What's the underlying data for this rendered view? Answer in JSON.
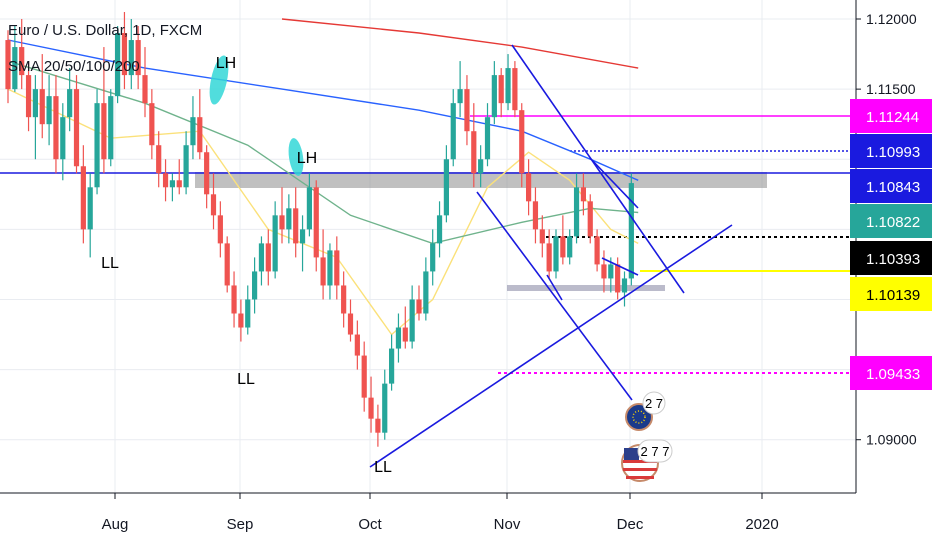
{
  "header": {
    "symbol": "Euro / U.S. Dollar, 1D, FXCM",
    "indicator": "SMA 20/50/100/200"
  },
  "colors": {
    "up": "#26a69a",
    "down": "#ef5350",
    "sma20": "#fbe17a",
    "sma50": "#6fb38c",
    "sma100": "#2962ff",
    "sma200": "#e53935",
    "trendline": "#1a1adf",
    "zone": "#8d8d8d",
    "magenta": "#ff00ff",
    "yellow": "#ffff00",
    "grid": "#e9ecf1"
  },
  "chart_data": {
    "type": "candlestick",
    "title": "Euro / U.S. Dollar, 1D, FXCM",
    "subtitle": "SMA 20/50/100/200",
    "x_ticks": [
      "Aug",
      "Sep",
      "Oct",
      "Nov",
      "Dec",
      "2020"
    ],
    "y_ticks": [
      "1.12000",
      "1.11500",
      "1.09000"
    ],
    "ylim": [
      1.0862,
      1.1205
    ],
    "grid": true,
    "price_labels": [
      {
        "value": "1.11244",
        "price": 1.11244,
        "bg": "#ff00ff",
        "fg": "#ffffff"
      },
      {
        "value": "1.10993",
        "price": 1.10993,
        "bg": "#1a1adf",
        "fg": "#ffffff"
      },
      {
        "value": "1.10843",
        "price": 1.10843,
        "bg": "#1a1adf",
        "fg": "#ffffff"
      },
      {
        "value": "1.10822",
        "price": 1.10822,
        "bg": "#26a69a",
        "fg": "#ffffff"
      },
      {
        "value": "1.10393",
        "price": 1.10393,
        "bg": "#000000",
        "fg": "#ffffff"
      },
      {
        "value": "1.10139",
        "price": 1.10139,
        "bg": "#ffff00",
        "fg": "#000000"
      },
      {
        "value": "1.09433",
        "price": 1.09433,
        "bg": "#ff00ff",
        "fg": "#ffffff"
      }
    ],
    "annotations": [
      "LH",
      "LH",
      "LL",
      "LL",
      "LL"
    ],
    "event_markers": [
      "2 7",
      "2 7 7"
    ],
    "candles": [
      [
        1.1185,
        1.1192,
        1.114,
        1.115
      ],
      [
        1.115,
        1.1195,
        1.1148,
        1.118
      ],
      [
        1.118,
        1.12,
        1.115,
        1.116
      ],
      [
        1.116,
        1.117,
        1.112,
        1.113
      ],
      [
        1.113,
        1.116,
        1.11,
        1.115
      ],
      [
        1.115,
        1.1175,
        1.1115,
        1.1125
      ],
      [
        1.1125,
        1.116,
        1.111,
        1.1145
      ],
      [
        1.1145,
        1.116,
        1.109,
        1.11
      ],
      [
        1.11,
        1.114,
        1.1085,
        1.113
      ],
      [
        1.113,
        1.1165,
        1.112,
        1.115
      ],
      [
        1.115,
        1.116,
        1.109,
        1.1095
      ],
      [
        1.1095,
        1.111,
        1.104,
        1.105
      ],
      [
        1.105,
        1.109,
        1.103,
        1.108
      ],
      [
        1.108,
        1.115,
        1.1075,
        1.114
      ],
      [
        1.114,
        1.118,
        1.109,
        1.11
      ],
      [
        1.11,
        1.115,
        1.1095,
        1.1145
      ],
      [
        1.1145,
        1.1195,
        1.114,
        1.119
      ],
      [
        1.119,
        1.1205,
        1.115,
        1.116
      ],
      [
        1.116,
        1.12,
        1.115,
        1.1185
      ],
      [
        1.1185,
        1.1195,
        1.115,
        1.116
      ],
      [
        1.116,
        1.118,
        1.113,
        1.114
      ],
      [
        1.114,
        1.115,
        1.11,
        1.111
      ],
      [
        1.111,
        1.112,
        1.108,
        1.109
      ],
      [
        1.109,
        1.11,
        1.107,
        1.108
      ],
      [
        1.108,
        1.109,
        1.107,
        1.1085
      ],
      [
        1.1085,
        1.11,
        1.1075,
        1.108
      ],
      [
        1.108,
        1.112,
        1.1075,
        1.111
      ],
      [
        1.111,
        1.1145,
        1.11,
        1.113
      ],
      [
        1.113,
        1.115,
        1.11,
        1.1105
      ],
      [
        1.1105,
        1.111,
        1.1065,
        1.1075
      ],
      [
        1.1075,
        1.109,
        1.105,
        1.106
      ],
      [
        1.106,
        1.107,
        1.103,
        1.104
      ],
      [
        1.104,
        1.1045,
        1.1005,
        1.101
      ],
      [
        1.101,
        1.102,
        1.098,
        1.099
      ],
      [
        1.099,
        1.1,
        1.097,
        1.098
      ],
      [
        1.098,
        1.101,
        1.0975,
        1.1
      ],
      [
        1.1,
        1.103,
        1.099,
        1.102
      ],
      [
        1.102,
        1.1045,
        1.101,
        1.104
      ],
      [
        1.104,
        1.105,
        1.101,
        1.102
      ],
      [
        1.102,
        1.107,
        1.1015,
        1.106
      ],
      [
        1.106,
        1.108,
        1.104,
        1.105
      ],
      [
        1.105,
        1.1075,
        1.104,
        1.1065
      ],
      [
        1.1065,
        1.108,
        1.103,
        1.104
      ],
      [
        1.104,
        1.106,
        1.102,
        1.105
      ],
      [
        1.105,
        1.109,
        1.1045,
        1.108
      ],
      [
        1.108,
        1.1085,
        1.102,
        1.103
      ],
      [
        1.103,
        1.105,
        1.1,
        1.101
      ],
      [
        1.101,
        1.104,
        1.1,
        1.1035
      ],
      [
        1.1035,
        1.1045,
        1.1,
        1.101
      ],
      [
        1.101,
        1.102,
        1.098,
        1.099
      ],
      [
        1.099,
        1.1,
        1.097,
        1.0975
      ],
      [
        1.0975,
        1.0985,
        1.095,
        1.096
      ],
      [
        1.096,
        1.097,
        1.092,
        1.093
      ],
      [
        1.093,
        1.0945,
        1.0905,
        1.0915
      ],
      [
        1.0915,
        1.0925,
        1.0895,
        1.0905
      ],
      [
        1.0905,
        1.095,
        1.09,
        1.094
      ],
      [
        1.094,
        1.0975,
        1.0935,
        1.0965
      ],
      [
        1.0965,
        1.099,
        1.0955,
        1.098
      ],
      [
        1.098,
        1.0995,
        1.0965,
        1.097
      ],
      [
        1.097,
        1.101,
        1.0965,
        1.1
      ],
      [
        1.1,
        1.101,
        1.0985,
        1.099
      ],
      [
        1.099,
        1.103,
        1.0985,
        1.102
      ],
      [
        1.102,
        1.105,
        1.101,
        1.104
      ],
      [
        1.104,
        1.107,
        1.103,
        1.106
      ],
      [
        1.106,
        1.111,
        1.1055,
        1.11
      ],
      [
        1.11,
        1.115,
        1.1095,
        1.114
      ],
      [
        1.114,
        1.117,
        1.113,
        1.115
      ],
      [
        1.115,
        1.116,
        1.111,
        1.112
      ],
      [
        1.112,
        1.114,
        1.108,
        1.109
      ],
      [
        1.109,
        1.111,
        1.108,
        1.11
      ],
      [
        1.11,
        1.114,
        1.1095,
        1.113
      ],
      [
        1.113,
        1.117,
        1.1125,
        1.116
      ],
      [
        1.116,
        1.1165,
        1.113,
        1.114
      ],
      [
        1.114,
        1.1175,
        1.1135,
        1.1165
      ],
      [
        1.1165,
        1.117,
        1.113,
        1.1135
      ],
      [
        1.1135,
        1.114,
        1.108,
        1.109
      ],
      [
        1.109,
        1.11,
        1.106,
        1.107
      ],
      [
        1.107,
        1.108,
        1.104,
        1.105
      ],
      [
        1.105,
        1.106,
        1.103,
        1.104
      ],
      [
        1.104,
        1.105,
        1.1015,
        1.102
      ],
      [
        1.102,
        1.105,
        1.1015,
        1.1045
      ],
      [
        1.1045,
        1.106,
        1.1025,
        1.103
      ],
      [
        1.103,
        1.105,
        1.1025,
        1.1045
      ],
      [
        1.1045,
        1.109,
        1.104,
        1.108
      ],
      [
        1.108,
        1.109,
        1.106,
        1.107
      ],
      [
        1.107,
        1.1075,
        1.104,
        1.1045
      ],
      [
        1.1045,
        1.105,
        1.102,
        1.1025
      ],
      [
        1.1025,
        1.1035,
        1.1005,
        1.1015
      ],
      [
        1.1015,
        1.103,
        1.1005,
        1.1025
      ],
      [
        1.1025,
        1.103,
        1.1,
        1.1005
      ],
      [
        1.1005,
        1.102,
        1.0995,
        1.1015
      ],
      [
        1.1015,
        1.109,
        1.101,
        1.1083
      ]
    ],
    "sma20": [
      [
        0,
        1.115
      ],
      [
        15,
        1.1115
      ],
      [
        28,
        1.112
      ],
      [
        38,
        1.105
      ],
      [
        48,
        1.103
      ],
      [
        56,
        1.0975
      ],
      [
        62,
        1.1
      ],
      [
        70,
        1.108
      ],
      [
        76,
        1.1105
      ],
      [
        82,
        1.1085
      ],
      [
        88,
        1.105
      ],
      [
        92,
        1.104
      ]
    ],
    "sma50": [
      [
        0,
        1.117
      ],
      [
        20,
        1.114
      ],
      [
        35,
        1.111
      ],
      [
        50,
        1.106
      ],
      [
        62,
        1.104
      ],
      [
        75,
        1.1055
      ],
      [
        85,
        1.1065
      ],
      [
        92,
        1.1062
      ]
    ],
    "sma100": [
      [
        0,
        1.1185
      ],
      [
        20,
        1.1165
      ],
      [
        40,
        1.115
      ],
      [
        60,
        1.1135
      ],
      [
        75,
        1.112
      ],
      [
        85,
        1.11
      ],
      [
        92,
        1.1085
      ]
    ],
    "sma200": [
      [
        40,
        1.12
      ],
      [
        60,
        1.119
      ],
      [
        75,
        1.118
      ],
      [
        92,
        1.1165
      ]
    ]
  }
}
